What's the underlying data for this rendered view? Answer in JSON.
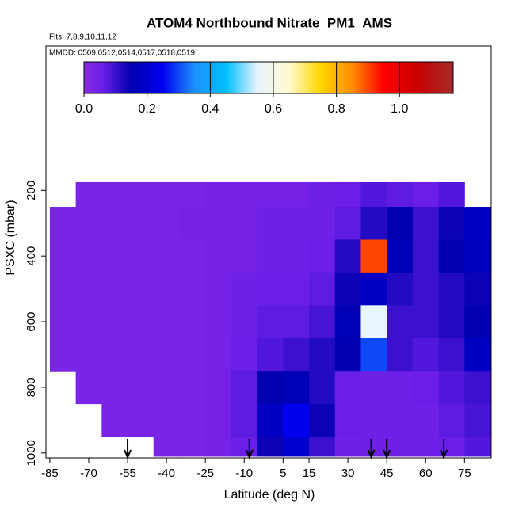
{
  "chart_data": {
    "type": "heatmap",
    "title": "ATOM4 Northbound Nitrate_PM1_AMS",
    "subtitle": "Flts: 7,8,9,10,11,12",
    "annotation": "MMDD: 0509,0512,0514,0517,0518,0519",
    "x_label": "Latitude (deg N)",
    "y_label": "PSXC (mbar)",
    "xlim": [
      -86.5,
      85.3
    ],
    "ylim": [
      1015,
      -240
    ],
    "xticks": [
      -85,
      -70,
      -55,
      -40,
      -25,
      -10,
      5,
      15,
      30,
      45,
      60,
      75
    ],
    "yticks": [
      200,
      400,
      600,
      800,
      1000
    ],
    "lat_edges": [
      -85,
      -75,
      -65,
      -55,
      -45,
      -35,
      -25,
      -15,
      -5,
      5,
      15,
      25,
      35,
      45,
      55,
      65,
      75,
      85
    ],
    "pressure_edges": [
      175,
      250,
      350,
      450,
      550,
      650,
      750,
      850,
      950,
      1010
    ],
    "values": [
      [
        null,
        0.03,
        0.03,
        0.03,
        0.03,
        0.03,
        0.04,
        0.04,
        0.04,
        0.04,
        0.05,
        0.06,
        0.08,
        0.07,
        0.06,
        0.08,
        null
      ],
      [
        0.03,
        0.03,
        0.03,
        0.03,
        0.03,
        0.04,
        0.04,
        0.04,
        0.05,
        0.05,
        0.05,
        0.07,
        0.12,
        0.15,
        0.1,
        0.14,
        0.18
      ],
      [
        0.03,
        0.03,
        0.03,
        0.03,
        0.03,
        0.03,
        0.04,
        0.04,
        0.05,
        0.05,
        0.06,
        0.12,
        0.9,
        0.16,
        0.1,
        0.15,
        0.17
      ],
      [
        0.03,
        0.03,
        0.03,
        0.03,
        0.03,
        0.03,
        0.04,
        0.05,
        0.06,
        0.06,
        0.07,
        0.14,
        0.18,
        0.12,
        0.1,
        0.12,
        0.14
      ],
      [
        0.03,
        0.03,
        0.03,
        0.03,
        0.03,
        0.03,
        0.04,
        0.05,
        0.07,
        0.07,
        0.09,
        0.16,
        0.55,
        0.1,
        0.1,
        0.12,
        0.15
      ],
      [
        0.03,
        0.03,
        0.03,
        0.03,
        0.03,
        0.03,
        0.04,
        0.06,
        0.08,
        0.1,
        0.12,
        0.15,
        0.3,
        0.1,
        0.08,
        0.1,
        0.18
      ],
      [
        null,
        0.03,
        0.03,
        0.03,
        0.03,
        0.03,
        0.04,
        0.07,
        0.15,
        0.16,
        0.12,
        0.06,
        0.05,
        0.05,
        0.06,
        0.08,
        0.1
      ],
      [
        null,
        null,
        0.03,
        0.03,
        0.03,
        0.03,
        0.04,
        0.07,
        0.18,
        0.25,
        0.14,
        0.06,
        0.05,
        0.05,
        0.05,
        0.07,
        0.09
      ],
      [
        null,
        null,
        null,
        null,
        0.03,
        0.03,
        0.04,
        0.06,
        0.14,
        0.2,
        0.1,
        0.05,
        0.05,
        0.05,
        0.05,
        0.06,
        0.08
      ]
    ],
    "colorbar": {
      "lim": [
        0,
        1.17
      ],
      "ticks": [
        {
          "value": 0,
          "label": "0.0"
        },
        {
          "value": 0.2,
          "label": "0.2"
        },
        {
          "value": 0.4,
          "label": "0.4"
        },
        {
          "value": 0.6,
          "label": "0.6"
        },
        {
          "value": 0.8,
          "label": "0.8"
        },
        {
          "value": 1,
          "label": "1.0"
        }
      ],
      "stops": [
        0,
        0.06,
        0.15,
        0.25,
        0.35,
        0.45,
        0.55,
        0.65,
        0.75,
        0.85,
        0.95,
        1.05,
        1.17
      ],
      "colors": [
        "#8a2be2",
        "#6a1ee8",
        "#0000b0",
        "#0000ee",
        "#1e90ff",
        "#00bfff",
        "#e8f4ff",
        "#fffacd",
        "#ffd700",
        "#ff8c00",
        "#ff0000",
        "#cc0000",
        "#a52a2a"
      ]
    },
    "arrows": [
      -55,
      -8,
      39,
      45,
      67
    ]
  }
}
